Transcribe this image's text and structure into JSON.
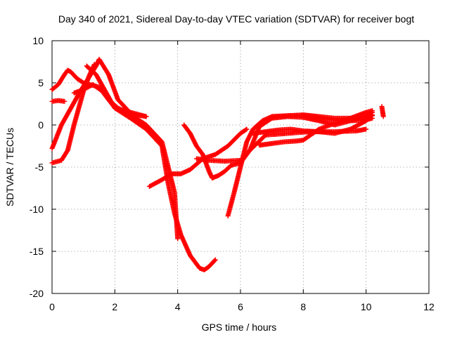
{
  "chart_data": {
    "type": "scatter",
    "title": "Day 340 of 2021, Sidereal Day-to-day VTEC variation (SDTVAR) for receiver bogt",
    "xlabel": "GPS time / hours",
    "ylabel": "SDTVAR / TECUs",
    "xlim": [
      0,
      12
    ],
    "ylim": [
      -20,
      10
    ],
    "xticks": [
      0,
      2,
      4,
      6,
      8,
      10,
      12
    ],
    "yticks": [
      -20,
      -15,
      -10,
      -5,
      0,
      5,
      10
    ],
    "grid": true,
    "marker": "+",
    "color": "#ff0000",
    "series": [
      {
        "x": [
          0.0,
          0.2,
          0.4,
          0.5,
          0.6,
          0.8,
          1.0,
          1.2,
          1.5,
          1.8,
          2.1,
          2.5,
          3.0
        ],
        "y": [
          4.2,
          4.8,
          6.0,
          6.5,
          6.3,
          5.5,
          5.0,
          4.8,
          4.5,
          3.0,
          2.0,
          1.3,
          1.0
        ]
      },
      {
        "x": [
          0.0,
          0.3,
          0.6,
          0.9,
          1.2,
          1.4,
          1.5,
          1.8,
          2.1,
          2.6,
          3.0,
          3.5,
          3.9,
          4.0
        ],
        "y": [
          -2.8,
          0.0,
          2.0,
          4.0,
          5.8,
          7.0,
          7.8,
          6.0,
          3.0,
          1.0,
          0.0,
          -2.0,
          -8.0,
          -13.5
        ]
      },
      {
        "x": [
          0.0,
          0.3,
          0.5,
          0.7,
          1.0,
          1.2,
          1.35
        ],
        "y": [
          -4.5,
          -4.2,
          -3.0,
          0.0,
          4.0,
          6.0,
          7.2
        ]
      },
      {
        "x": [
          0.0,
          0.2,
          0.4
        ],
        "y": [
          2.8,
          2.9,
          2.8
        ]
      },
      {
        "x": [
          0.7,
          1.0,
          1.3,
          1.6,
          2.0,
          2.5,
          3.0,
          3.5,
          3.7,
          3.9,
          4.1,
          4.4,
          4.7,
          4.85,
          5.0,
          5.2
        ],
        "y": [
          3.8,
          4.2,
          4.8,
          4.0,
          2.0,
          0.8,
          -0.5,
          -2.5,
          -7.0,
          -10.5,
          -13.0,
          -15.5,
          -17.0,
          -17.2,
          -16.8,
          -16.0
        ]
      },
      {
        "x": [
          1.1,
          1.4,
          1.7,
          2.0,
          2.5,
          3.0
        ],
        "y": [
          7.0,
          6.0,
          4.0,
          2.0,
          1.5,
          1.0
        ]
      },
      {
        "x": [
          3.1,
          3.5,
          3.8,
          4.1,
          4.4,
          4.8,
          5.2,
          5.6,
          6.0,
          6.2
        ],
        "y": [
          -7.3,
          -6.5,
          -5.8,
          -5.8,
          -5.3,
          -4.0,
          -3.5,
          -2.5,
          -1.0,
          -0.5
        ]
      },
      {
        "x": [
          4.2,
          4.4,
          4.6,
          4.8,
          5.0,
          5.1,
          5.3,
          5.5,
          5.7,
          6.0,
          6.3,
          6.8,
          7.5,
          8.2,
          9.0,
          9.7,
          10.0
        ],
        "y": [
          0.0,
          -1.0,
          -2.5,
          -3.5,
          -5.5,
          -6.3,
          -6.0,
          -5.5,
          -4.8,
          -4.5,
          -3.0,
          -1.2,
          -1.0,
          -0.8,
          -0.8,
          -0.7,
          -0.5
        ]
      },
      {
        "x": [
          5.6,
          5.8,
          6.0,
          6.2,
          6.4,
          6.7,
          7.0,
          7.5,
          8.0,
          8.5,
          9.0,
          9.5,
          10.0,
          10.2
        ],
        "y": [
          -10.8,
          -8.0,
          -5.0,
          -2.0,
          -0.5,
          0.5,
          1.0,
          1.1,
          1.2,
          1.0,
          0.8,
          0.8,
          1.0,
          1.1
        ]
      },
      {
        "x": [
          4.6,
          5.0,
          5.5,
          6.0,
          6.3,
          6.6,
          7.0,
          7.5,
          8.0,
          8.5,
          9.0,
          9.5,
          10.0,
          10.2
        ],
        "y": [
          -4.0,
          -4.2,
          -4.3,
          -4.2,
          -3.0,
          -0.2,
          0.8,
          1.0,
          0.9,
          0.5,
          0.0,
          0.5,
          1.0,
          1.5
        ]
      },
      {
        "x": [
          6.4,
          6.8,
          7.2,
          7.6,
          8.0,
          8.5,
          9.0,
          9.5,
          10.0,
          10.2
        ],
        "y": [
          -1.0,
          -0.8,
          -0.6,
          -0.5,
          -0.7,
          -0.8,
          -1.0,
          -0.5,
          0.5,
          1.2
        ]
      },
      {
        "x": [
          6.6,
          7.0,
          7.4,
          7.8,
          8.0,
          8.5,
          9.0,
          9.5,
          10.0,
          10.2
        ],
        "y": [
          -2.4,
          -2.2,
          -2.0,
          -1.9,
          -1.8,
          -0.5,
          0.2,
          0.8,
          1.5,
          1.7
        ]
      },
      {
        "x": [
          7.0,
          7.5,
          8.0,
          8.5,
          9.0,
          9.5,
          10.0,
          10.2
        ],
        "y": [
          1.0,
          1.1,
          1.1,
          0.8,
          0.6,
          0.5,
          0.6,
          0.8
        ]
      },
      {
        "x": [
          10.5,
          10.55
        ],
        "y": [
          2.2,
          1.0
        ]
      }
    ]
  }
}
